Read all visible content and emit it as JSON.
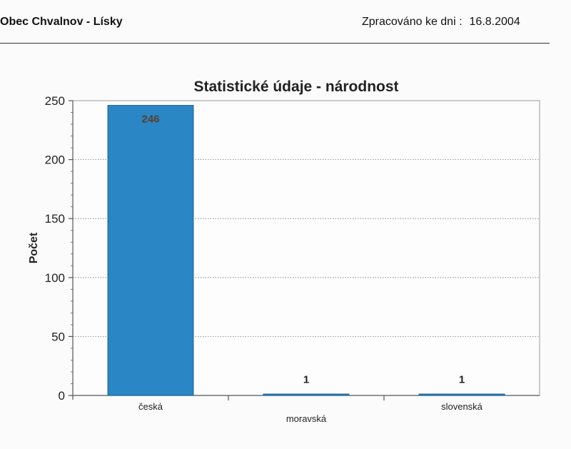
{
  "header": {
    "municipality": "Obec Chvalnov - Lísky",
    "processed_label": "Zpracováno ke dni :",
    "processed_date": "16.8.2004"
  },
  "chart_data": {
    "type": "bar",
    "title": "Statistické údaje - národnost",
    "xlabel": "",
    "ylabel": "Počet",
    "categories": [
      "česká",
      "moravská",
      "slovenská"
    ],
    "values": [
      246,
      1,
      1
    ],
    "data_labels": [
      "246",
      "1",
      "1"
    ],
    "ylim": [
      0,
      250
    ],
    "yticks": [
      0,
      50,
      100,
      150,
      200,
      250
    ],
    "grid": true,
    "legend": "none",
    "bar_color": "#2a86c4"
  }
}
